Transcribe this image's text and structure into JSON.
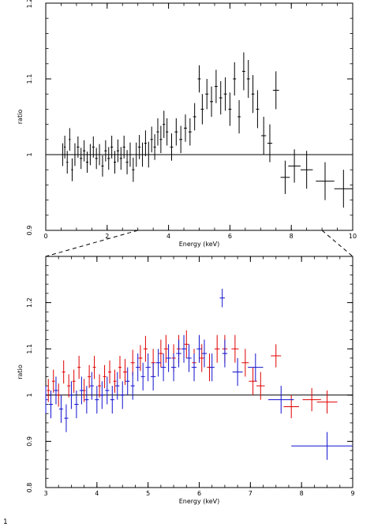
{
  "chart_data": [
    {
      "type": "scatter",
      "title": "",
      "xlabel": "Energy (keV)",
      "ylabel": "ratio",
      "xlim": [
        0,
        10
      ],
      "ylim": [
        0.9,
        1.2
      ],
      "x_ticks": [
        0,
        2,
        4,
        6,
        8,
        10
      ],
      "y_ticks": [
        0.9,
        1,
        1.1,
        1.2
      ],
      "x_tick_labels": [
        "0",
        "2",
        "4",
        "6",
        "8",
        "10"
      ],
      "y_tick_labels": [
        "0.9",
        "1",
        "1.1",
        "1.2"
      ],
      "reference_line": 1.0,
      "grid": false,
      "series": [
        {
          "color": "#000000",
          "points": [
            [
              0.55,
              1.0,
              0.03,
              0.015
            ],
            [
              0.62,
              1.01,
              0.03,
              0.015
            ],
            [
              0.7,
              0.99,
              0.03,
              0.015
            ],
            [
              0.78,
              1.02,
              0.03,
              0.015
            ],
            [
              0.86,
              0.98,
              0.03,
              0.015
            ],
            [
              0.95,
              1.0,
              0.03,
              0.015
            ],
            [
              1.05,
              1.01,
              0.04,
              0.014
            ],
            [
              1.15,
              0.995,
              0.04,
              0.014
            ],
            [
              1.25,
              1.005,
              0.04,
              0.014
            ],
            [
              1.35,
              0.99,
              0.04,
              0.014
            ],
            [
              1.45,
              1.0,
              0.04,
              0.014
            ],
            [
              1.55,
              1.01,
              0.04,
              0.014
            ],
            [
              1.65,
              0.995,
              0.04,
              0.014
            ],
            [
              1.75,
              1.0,
              0.04,
              0.014
            ],
            [
              1.85,
              0.985,
              0.04,
              0.014
            ],
            [
              1.95,
              1.005,
              0.04,
              0.014
            ],
            [
              2.05,
              0.995,
              0.04,
              0.015
            ],
            [
              2.15,
              1.01,
              0.04,
              0.015
            ],
            [
              2.25,
              0.99,
              0.04,
              0.015
            ],
            [
              2.35,
              1.005,
              0.04,
              0.015
            ],
            [
              2.45,
              0.995,
              0.04,
              0.015
            ],
            [
              2.55,
              1.01,
              0.04,
              0.015
            ],
            [
              2.65,
              0.99,
              0.04,
              0.016
            ],
            [
              2.75,
              1.0,
              0.04,
              0.016
            ],
            [
              2.85,
              0.98,
              0.04,
              0.016
            ],
            [
              2.95,
              1.0,
              0.04,
              0.016
            ],
            [
              3.05,
              1.01,
              0.04,
              0.016
            ],
            [
              3.15,
              1.0,
              0.04,
              0.016
            ],
            [
              3.25,
              1.015,
              0.04,
              0.017
            ],
            [
              3.35,
              1.0,
              0.04,
              0.017
            ],
            [
              3.45,
              1.02,
              0.04,
              0.017
            ],
            [
              3.55,
              1.01,
              0.04,
              0.017
            ],
            [
              3.65,
              1.03,
              0.04,
              0.018
            ],
            [
              3.75,
              1.02,
              0.04,
              0.018
            ],
            [
              3.85,
              1.04,
              0.04,
              0.018
            ],
            [
              3.95,
              1.03,
              0.04,
              0.018
            ],
            [
              4.1,
              1.01,
              0.05,
              0.018
            ],
            [
              4.25,
              1.03,
              0.05,
              0.018
            ],
            [
              4.4,
              1.02,
              0.05,
              0.018
            ],
            [
              4.55,
              1.035,
              0.05,
              0.018
            ],
            [
              4.7,
              1.03,
              0.05,
              0.018
            ],
            [
              4.85,
              1.05,
              0.05,
              0.018
            ],
            [
              5.0,
              1.1,
              0.05,
              0.018
            ],
            [
              5.1,
              1.06,
              0.05,
              0.02
            ],
            [
              5.25,
              1.08,
              0.05,
              0.02
            ],
            [
              5.4,
              1.07,
              0.05,
              0.02
            ],
            [
              5.55,
              1.09,
              0.05,
              0.022
            ],
            [
              5.7,
              1.075,
              0.05,
              0.022
            ],
            [
              5.85,
              1.08,
              0.05,
              0.022
            ],
            [
              6.0,
              1.06,
              0.05,
              0.022
            ],
            [
              6.15,
              1.1,
              0.05,
              0.022
            ],
            [
              6.3,
              1.05,
              0.05,
              0.022
            ],
            [
              6.45,
              1.11,
              0.05,
              0.025
            ],
            [
              6.6,
              1.1,
              0.05,
              0.025
            ],
            [
              6.75,
              1.08,
              0.05,
              0.025
            ],
            [
              6.9,
              1.06,
              0.05,
              0.025
            ],
            [
              7.1,
              1.025,
              0.08,
              0.025
            ],
            [
              7.3,
              1.015,
              0.08,
              0.025
            ],
            [
              7.5,
              1.085,
              0.1,
              0.025
            ],
            [
              7.8,
              0.97,
              0.15,
              0.022
            ],
            [
              8.1,
              0.985,
              0.2,
              0.022
            ],
            [
              8.5,
              0.98,
              0.2,
              0.025
            ],
            [
              9.1,
              0.965,
              0.3,
              0.025
            ],
            [
              9.7,
              0.955,
              0.3,
              0.025
            ]
          ]
        }
      ],
      "zoom_region": [
        3,
        9
      ]
    },
    {
      "type": "scatter",
      "title": "",
      "xlabel": "Energy (keV)",
      "ylabel": "ratio",
      "xlim": [
        3,
        9
      ],
      "ylim": [
        0.8,
        1.3
      ],
      "x_ticks": [
        3,
        4,
        5,
        6,
        7,
        8,
        9
      ],
      "y_ticks": [
        0.8,
        0.9,
        1,
        1.1,
        1.2
      ],
      "x_tick_labels": [
        "3",
        "4",
        "5",
        "6",
        "7",
        "8",
        "9"
      ],
      "y_tick_labels": [
        "0.8",
        "0.9",
        "1",
        "1.1",
        "1.2"
      ],
      "reference_line": 1.0,
      "grid": false,
      "series": [
        {
          "color": "#e00000",
          "points": [
            [
              3.05,
              1.01,
              0.03,
              0.025
            ],
            [
              3.15,
              1.03,
              0.03,
              0.025
            ],
            [
              3.25,
              1.0,
              0.03,
              0.025
            ],
            [
              3.35,
              1.05,
              0.03,
              0.025
            ],
            [
              3.45,
              1.02,
              0.03,
              0.025
            ],
            [
              3.55,
              1.03,
              0.03,
              0.025
            ],
            [
              3.65,
              1.06,
              0.03,
              0.025
            ],
            [
              3.75,
              1.01,
              0.03,
              0.025
            ],
            [
              3.85,
              1.04,
              0.03,
              0.025
            ],
            [
              3.95,
              1.06,
              0.03,
              0.025
            ],
            [
              4.05,
              1.02,
              0.03,
              0.025
            ],
            [
              4.15,
              1.04,
              0.03,
              0.025
            ],
            [
              4.25,
              1.05,
              0.03,
              0.025
            ],
            [
              4.35,
              1.03,
              0.03,
              0.025
            ],
            [
              4.45,
              1.06,
              0.03,
              0.025
            ],
            [
              4.55,
              1.05,
              0.04,
              0.028
            ],
            [
              4.7,
              1.07,
              0.04,
              0.028
            ],
            [
              4.85,
              1.08,
              0.04,
              0.028
            ],
            [
              4.95,
              1.1,
              0.04,
              0.028
            ],
            [
              5.1,
              1.07,
              0.04,
              0.03
            ],
            [
              5.25,
              1.09,
              0.04,
              0.03
            ],
            [
              5.35,
              1.1,
              0.04,
              0.03
            ],
            [
              5.5,
              1.08,
              0.04,
              0.03
            ],
            [
              5.6,
              1.1,
              0.04,
              0.03
            ],
            [
              5.75,
              1.11,
              0.04,
              0.03
            ],
            [
              5.9,
              1.07,
              0.04,
              0.03
            ],
            [
              6.05,
              1.08,
              0.05,
              0.03
            ],
            [
              6.2,
              1.06,
              0.05,
              0.03
            ],
            [
              6.35,
              1.1,
              0.05,
              0.03
            ],
            [
              6.5,
              1.1,
              0.05,
              0.03
            ],
            [
              6.7,
              1.1,
              0.07,
              0.03
            ],
            [
              6.9,
              1.07,
              0.07,
              0.03
            ],
            [
              7.05,
              1.03,
              0.08,
              0.03
            ],
            [
              7.2,
              1.02,
              0.08,
              0.03
            ],
            [
              7.5,
              1.085,
              0.1,
              0.025
            ],
            [
              7.8,
              0.975,
              0.15,
              0.025
            ],
            [
              8.2,
              0.99,
              0.18,
              0.025
            ],
            [
              8.5,
              0.985,
              0.2,
              0.025
            ]
          ]
        },
        {
          "color": "#1010d0",
          "points": [
            [
              3.0,
              0.99,
              0.04,
              0.03
            ],
            [
              3.1,
              0.98,
              0.04,
              0.03
            ],
            [
              3.2,
              1.01,
              0.04,
              0.03
            ],
            [
              3.3,
              0.97,
              0.04,
              0.03
            ],
            [
              3.4,
              0.95,
              0.04,
              0.03
            ],
            [
              3.5,
              1.0,
              0.04,
              0.03
            ],
            [
              3.6,
              0.98,
              0.04,
              0.03
            ],
            [
              3.7,
              1.01,
              0.04,
              0.03
            ],
            [
              3.8,
              0.99,
              0.04,
              0.03
            ],
            [
              3.9,
              1.02,
              0.04,
              0.03
            ],
            [
              4.0,
              0.99,
              0.04,
              0.03
            ],
            [
              4.1,
              1.0,
              0.04,
              0.03
            ],
            [
              4.2,
              1.01,
              0.04,
              0.03
            ],
            [
              4.3,
              0.99,
              0.04,
              0.03
            ],
            [
              4.4,
              1.02,
              0.04,
              0.03
            ],
            [
              4.5,
              1.0,
              0.04,
              0.03
            ],
            [
              4.6,
              1.03,
              0.04,
              0.03
            ],
            [
              4.7,
              1.02,
              0.04,
              0.03
            ],
            [
              4.8,
              1.06,
              0.04,
              0.03
            ],
            [
              4.9,
              1.04,
              0.04,
              0.03
            ],
            [
              5.0,
              1.06,
              0.05,
              0.03
            ],
            [
              5.1,
              1.04,
              0.05,
              0.03
            ],
            [
              5.2,
              1.07,
              0.05,
              0.03
            ],
            [
              5.3,
              1.06,
              0.05,
              0.03
            ],
            [
              5.4,
              1.08,
              0.05,
              0.03
            ],
            [
              5.5,
              1.06,
              0.05,
              0.03
            ],
            [
              5.6,
              1.09,
              0.05,
              0.03
            ],
            [
              5.7,
              1.1,
              0.05,
              0.03
            ],
            [
              5.8,
              1.08,
              0.05,
              0.03
            ],
            [
              5.9,
              1.06,
              0.05,
              0.03
            ],
            [
              6.0,
              1.1,
              0.05,
              0.03
            ],
            [
              6.1,
              1.09,
              0.05,
              0.03
            ],
            [
              6.25,
              1.06,
              0.05,
              0.03
            ],
            [
              6.45,
              1.21,
              0.05,
              0.02
            ],
            [
              6.5,
              1.09,
              0.05,
              0.03
            ],
            [
              6.75,
              1.05,
              0.1,
              0.03
            ],
            [
              7.1,
              1.06,
              0.15,
              0.03
            ],
            [
              7.6,
              0.99,
              0.25,
              0.03
            ],
            [
              8.5,
              0.89,
              0.7,
              0.03
            ]
          ]
        }
      ]
    }
  ],
  "panel_labels": [
    "1"
  ]
}
